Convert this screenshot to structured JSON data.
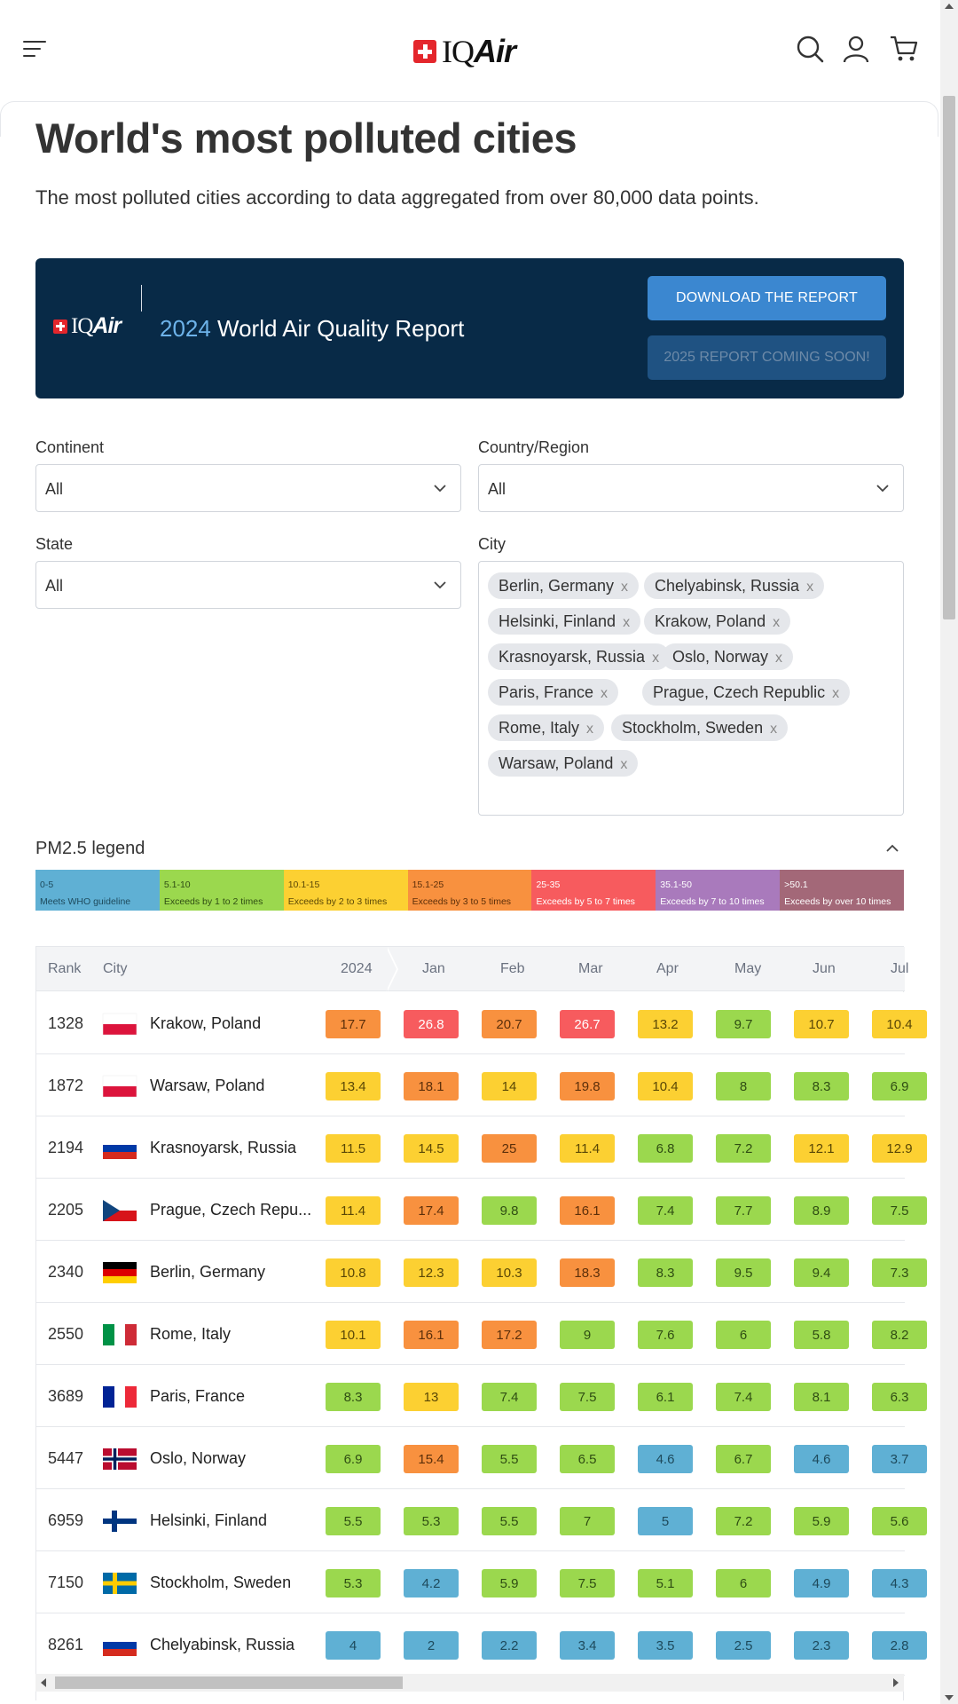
{
  "header": {
    "brand_iq": "IQ",
    "brand_air": "Air"
  },
  "page": {
    "title": "World's most polluted cities",
    "subtitle": "The most polluted cities according to data aggregated from over 80,000 data points."
  },
  "banner": {
    "brand_iq": "IQ",
    "brand_air": "Air",
    "year": "2024",
    "title": "World Air Quality Report",
    "download_label": "DOWNLOAD THE REPORT",
    "coming_soon_label": "2025 REPORT COMING SOON!",
    "bg_color": "#082a47"
  },
  "filters": {
    "continent": {
      "label": "Continent",
      "value": "All"
    },
    "country": {
      "label": "Country/Region",
      "value": "All"
    },
    "state": {
      "label": "State",
      "value": "All"
    },
    "city": {
      "label": "City",
      "chips": [
        "Berlin, Germany",
        "Chelyabinsk, Russia",
        "Helsinki, Finland",
        "Krakow, Poland",
        "Krasnoyarsk, Russia",
        "Oslo, Norway",
        "Paris, France",
        "Prague, Czech Republic",
        "Rome, Italy",
        "Stockholm, Sweden",
        "Warsaw, Poland"
      ],
      "remove_glyph": "x"
    }
  },
  "legend": {
    "title": "PM2.5 legend",
    "segments": [
      {
        "range": "0-5",
        "desc": "Meets WHO guideline",
        "color": "#5fb0d4",
        "text_color": "#1e4a5c"
      },
      {
        "range": "5.1-10",
        "desc": "Exceeds by 1 to 2 times",
        "color": "#9bd84e",
        "text_color": "#2f4d13"
      },
      {
        "range": "10.1-15",
        "desc": "Exceeds by 2 to 3 times",
        "color": "#fcd032",
        "text_color": "#5a4706"
      },
      {
        "range": "15.1-25",
        "desc": "Exceeds by 3 to 5 times",
        "color": "#f8913f",
        "text_color": "#5c2f0a"
      },
      {
        "range": "25-35",
        "desc": "Exceeds by 5 to 7 times",
        "color": "#f75b5e",
        "text_color": "#ffffff"
      },
      {
        "range": "35.1-50",
        "desc": "Exceeds by 7 to 10 times",
        "color": "#a97abc",
        "text_color": "#ffffff"
      },
      {
        "range": ">50.1",
        "desc": "Exceeds by over 10 times",
        "color": "#a36878",
        "text_color": "#ffffff"
      }
    ]
  },
  "table": {
    "headers": {
      "rank": "Rank",
      "city": "City",
      "months": [
        "2024",
        "Jan",
        "Feb",
        "Mar",
        "Apr",
        "May",
        "Jun",
        "Jul"
      ]
    },
    "rows": [
      {
        "rank": "1328",
        "city": "Krakow, Poland",
        "flag": "poland",
        "values": [
          "17.7",
          "26.8",
          "20.7",
          "26.7",
          "13.2",
          "9.7",
          "10.7",
          "10.4"
        ]
      },
      {
        "rank": "1872",
        "city": "Warsaw, Poland",
        "flag": "poland",
        "values": [
          "13.4",
          "18.1",
          "14",
          "19.8",
          "10.4",
          "8",
          "8.3",
          "6.9"
        ]
      },
      {
        "rank": "2194",
        "city": "Krasnoyarsk, Russia",
        "flag": "russia",
        "values": [
          "11.5",
          "14.5",
          "25",
          "11.4",
          "6.8",
          "7.2",
          "12.1",
          "12.9"
        ]
      },
      {
        "rank": "2205",
        "city": "Prague, Czech Repu...",
        "flag": "czech",
        "values": [
          "11.4",
          "17.4",
          "9.8",
          "16.1",
          "7.4",
          "7.7",
          "8.9",
          "7.5"
        ]
      },
      {
        "rank": "2340",
        "city": "Berlin, Germany",
        "flag": "germany",
        "values": [
          "10.8",
          "12.3",
          "10.3",
          "18.3",
          "8.3",
          "9.5",
          "9.4",
          "7.3"
        ]
      },
      {
        "rank": "2550",
        "city": "Rome, Italy",
        "flag": "italy",
        "values": [
          "10.1",
          "16.1",
          "17.2",
          "9",
          "7.6",
          "6",
          "5.8",
          "8.2"
        ]
      },
      {
        "rank": "3689",
        "city": "Paris, France",
        "flag": "france",
        "values": [
          "8.3",
          "13",
          "7.4",
          "7.5",
          "6.1",
          "7.4",
          "8.1",
          "6.3"
        ]
      },
      {
        "rank": "5447",
        "city": "Oslo, Norway",
        "flag": "norway",
        "values": [
          "6.9",
          "15.4",
          "5.5",
          "6.5",
          "4.6",
          "6.7",
          "4.6",
          "3.7"
        ]
      },
      {
        "rank": "6959",
        "city": "Helsinki, Finland",
        "flag": "finland",
        "values": [
          "5.5",
          "5.3",
          "5.5",
          "7",
          "5",
          "7.2",
          "5.9",
          "5.6"
        ]
      },
      {
        "rank": "7150",
        "city": "Stockholm, Sweden",
        "flag": "sweden",
        "values": [
          "5.3",
          "4.2",
          "5.9",
          "7.5",
          "5.1",
          "6",
          "4.9",
          "4.3"
        ]
      },
      {
        "rank": "8261",
        "city": "Chelyabinsk, Russia",
        "flag": "russia",
        "values": [
          "4",
          "2",
          "2.2",
          "3.4",
          "3.5",
          "2.5",
          "2.3",
          "2.8"
        ]
      }
    ]
  }
}
